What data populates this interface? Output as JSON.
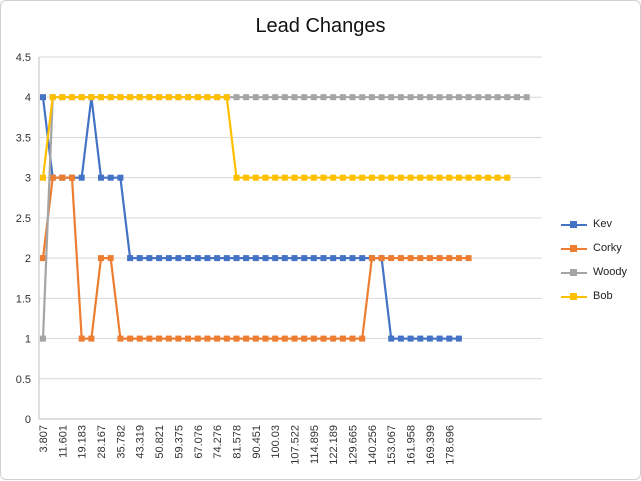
{
  "chart_data": {
    "type": "line",
    "title": "Lead Changes",
    "xlabel": "",
    "ylabel": "",
    "ylim": [
      0,
      4.5
    ],
    "yticks": [
      "0",
      "0.5",
      "1",
      "1.5",
      "2",
      "2.5",
      "3",
      "3.5",
      "4",
      "4.5"
    ],
    "x_tick_labels": [
      "3.807",
      "11.601",
      "19.183",
      "28.167",
      "35.782",
      "43.319",
      "50.821",
      "59.375",
      "67.076",
      "74.276",
      "81.578",
      "90.451",
      "100.03",
      "107.522",
      "114.895",
      "122.189",
      "129.665",
      "140.256",
      "153.067",
      "161.958",
      "169.399",
      "178.696"
    ],
    "grid": "horizontal",
    "legend_position": "right",
    "series": [
      {
        "name": "Kev",
        "color": "#4472C4",
        "values": [
          4,
          3,
          3,
          3,
          3,
          4,
          3,
          3,
          3,
          2,
          2,
          2,
          2,
          2,
          2,
          2,
          2,
          2,
          2,
          2,
          2,
          2,
          2,
          2,
          2,
          2,
          2,
          2,
          2,
          2,
          2,
          2,
          2,
          2,
          2,
          2,
          1,
          1,
          1,
          1,
          1,
          1,
          1,
          1
        ]
      },
      {
        "name": "Corky",
        "color": "#ED7D31",
        "values": [
          2,
          3,
          3,
          3,
          1,
          1,
          2,
          2,
          1,
          1,
          1,
          1,
          1,
          1,
          1,
          1,
          1,
          1,
          1,
          1,
          1,
          1,
          1,
          1,
          1,
          1,
          1,
          1,
          1,
          1,
          1,
          1,
          1,
          1,
          2,
          2,
          2,
          2,
          2,
          2,
          2,
          2,
          2,
          2,
          2
        ]
      },
      {
        "name": "Woody",
        "color": "#A5A5A5",
        "values": [
          1,
          4,
          4,
          4,
          4,
          4,
          4,
          4,
          4,
          4,
          4,
          4,
          4,
          4,
          4,
          4,
          4,
          4,
          4,
          4,
          4,
          4,
          4,
          4,
          4,
          4,
          4,
          4,
          4,
          4,
          4,
          4,
          4,
          4,
          4,
          4,
          4,
          4,
          4,
          4,
          4,
          4,
          4,
          4,
          4,
          4,
          4,
          4,
          4,
          4,
          4
        ]
      },
      {
        "name": "Bob",
        "color": "#FFC000",
        "values": [
          3,
          4,
          4,
          4,
          4,
          4,
          4,
          4,
          4,
          4,
          4,
          4,
          4,
          4,
          4,
          4,
          4,
          4,
          4,
          4,
          3,
          3,
          3,
          3,
          3,
          3,
          3,
          3,
          3,
          3,
          3,
          3,
          3,
          3,
          3,
          3,
          3,
          3,
          3,
          3,
          3,
          3,
          3,
          3,
          3,
          3,
          3,
          3,
          3
        ]
      }
    ]
  }
}
